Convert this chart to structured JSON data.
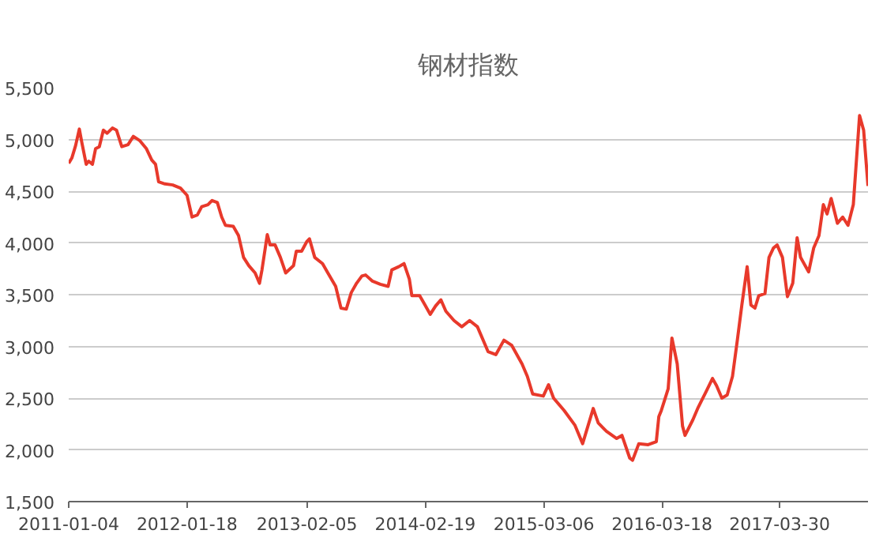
{
  "chart_data": {
    "type": "line",
    "title": "钢材指数",
    "x": [
      "2011-01-04",
      "2011-01-14",
      "2011-01-26",
      "2011-02-07",
      "2011-02-15",
      "2011-03-01",
      "2011-03-09",
      "2011-03-21",
      "2011-03-31",
      "2011-04-12",
      "2011-04-25",
      "2011-05-07",
      "2011-05-24",
      "2011-06-06",
      "2011-06-23",
      "2011-07-13",
      "2011-07-30",
      "2011-08-19",
      "2011-09-10",
      "2011-09-27",
      "2011-10-09",
      "2011-10-19",
      "2011-11-08",
      "2011-12-03",
      "2011-12-28",
      "2012-01-18",
      "2012-02-03",
      "2012-02-20",
      "2012-03-05",
      "2012-03-25",
      "2012-04-07",
      "2012-04-24",
      "2012-05-08",
      "2012-05-20",
      "2012-06-14",
      "2012-07-01",
      "2012-07-17",
      "2012-08-03",
      "2012-08-23",
      "2012-09-06",
      "2012-09-14",
      "2012-10-01",
      "2012-10-10",
      "2012-10-26",
      "2012-11-12",
      "2012-11-29",
      "2012-12-24",
      "2013-01-02",
      "2013-01-19",
      "2013-02-04",
      "2013-02-13",
      "2013-03-02",
      "2013-03-27",
      "2013-04-13",
      "2013-05-08",
      "2013-05-25",
      "2013-06-11",
      "2013-06-27",
      "2013-07-14",
      "2013-07-31",
      "2013-08-12",
      "2013-09-03",
      "2013-09-28",
      "2013-10-23",
      "2013-11-04",
      "2013-11-26",
      "2013-12-13",
      "2013-12-30",
      "2014-01-07",
      "2014-02-01",
      "2014-02-18",
      "2014-03-07",
      "2014-03-24",
      "2014-04-10",
      "2014-04-26",
      "2014-05-22",
      "2014-06-16",
      "2014-07-11",
      "2014-08-05",
      "2014-09-08",
      "2014-10-03",
      "2014-10-29",
      "2014-11-23",
      "2014-12-26",
      "2015-01-12",
      "2015-01-29",
      "2015-03-04",
      "2015-03-21",
      "2015-04-06",
      "2015-05-10",
      "2015-06-13",
      "2015-07-08",
      "2015-07-25",
      "2015-08-11",
      "2015-08-27",
      "2015-09-22",
      "2015-10-25",
      "2015-11-11",
      "2015-12-06",
      "2015-12-15",
      "2016-01-04",
      "2016-02-03",
      "2016-02-29",
      "2016-03-08",
      "2016-03-16",
      "2016-04-07",
      "2016-04-19",
      "2016-05-06",
      "2016-05-23",
      "2016-05-31",
      "2016-06-25",
      "2016-07-12",
      "2016-08-06",
      "2016-08-27",
      "2016-09-09",
      "2016-09-26",
      "2016-10-13",
      "2016-10-30",
      "2016-11-15",
      "2016-11-29",
      "2016-12-16",
      "2016-12-28",
      "2017-01-10",
      "2017-01-22",
      "2017-02-11",
      "2017-02-24",
      "2017-03-10",
      "2017-03-22",
      "2017-04-08",
      "2017-04-24",
      "2017-05-11",
      "2017-05-25",
      "2017-06-05",
      "2017-07-01",
      "2017-07-17",
      "2017-08-03",
      "2017-08-17",
      "2017-08-29",
      "2017-09-11",
      "2017-10-01",
      "2017-10-18",
      "2017-11-04",
      "2017-11-21",
      "2017-12-11",
      "2017-12-24",
      "2018-01-07"
    ],
    "series": [
      {
        "color": "#e8392b",
        "values": [
          4770,
          4820,
          4940,
          5100,
          4970,
          4760,
          4790,
          4760,
          4910,
          4930,
          5090,
          5060,
          5110,
          5090,
          4930,
          4950,
          5030,
          4990,
          4910,
          4800,
          4760,
          4590,
          4570,
          4560,
          4530,
          4460,
          4250,
          4270,
          4350,
          4370,
          4410,
          4390,
          4250,
          4170,
          4160,
          4070,
          3860,
          3780,
          3710,
          3610,
          3740,
          4080,
          3980,
          3980,
          3860,
          3710,
          3780,
          3920,
          3920,
          4010,
          4040,
          3860,
          3800,
          3710,
          3580,
          3370,
          3360,
          3520,
          3610,
          3680,
          3690,
          3630,
          3600,
          3580,
          3740,
          3770,
          3800,
          3650,
          3490,
          3490,
          3400,
          3310,
          3390,
          3450,
          3340,
          3250,
          3190,
          3250,
          3190,
          2950,
          2920,
          3060,
          3010,
          2830,
          2710,
          2540,
          2520,
          2630,
          2500,
          2380,
          2240,
          2060,
          2230,
          2400,
          2260,
          2180,
          2110,
          2140,
          1920,
          1900,
          2060,
          2050,
          2080,
          2320,
          2380,
          2590,
          3080,
          2830,
          2230,
          2140,
          2290,
          2410,
          2560,
          2690,
          2620,
          2500,
          2530,
          2710,
          3070,
          3400,
          3770,
          3400,
          3370,
          3490,
          3510,
          3860,
          3950,
          3980,
          3860,
          3480,
          3610,
          4050,
          3860,
          3720,
          3950,
          4070,
          4370,
          4280,
          4430,
          4190,
          4250,
          4170,
          4370,
          5230,
          5090,
          4550
        ]
      }
    ],
    "xlim": [
      "2011-01-04",
      "2018-01-07"
    ],
    "xticks": [
      "2011-01-04",
      "2012-01-18",
      "2013-02-05",
      "2014-02-19",
      "2015-03-06",
      "2016-03-18",
      "2017-03-30"
    ],
    "ylim": [
      1500,
      5500
    ],
    "yticks": [
      {
        "value": 1500,
        "label": "1,500"
      },
      {
        "value": 2000,
        "label": "2,000"
      },
      {
        "value": 2500,
        "label": "2,500"
      },
      {
        "value": 3000,
        "label": "3,000"
      },
      {
        "value": 3500,
        "label": "3,500"
      },
      {
        "value": 4000,
        "label": "4,000"
      },
      {
        "value": 4500,
        "label": "4,500"
      },
      {
        "value": 5000,
        "label": "5,000"
      },
      {
        "value": 5500,
        "label": "5,500"
      }
    ],
    "grid": "y",
    "line_style": "solid"
  }
}
